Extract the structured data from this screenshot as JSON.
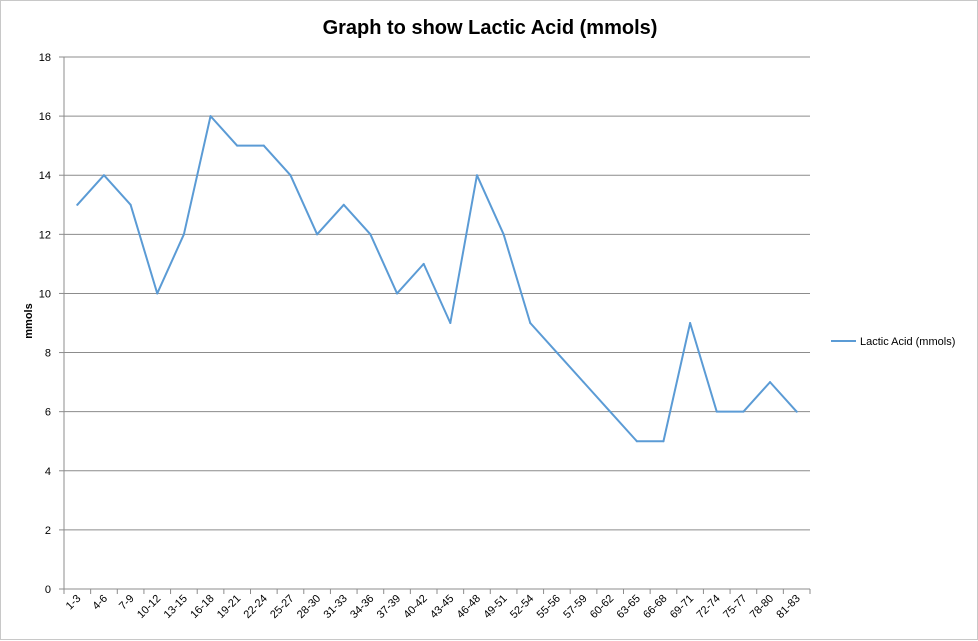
{
  "chart_data": {
    "type": "line",
    "title": "Graph to show Lactic Acid (mmols)",
    "xlabel": "",
    "ylabel": "mmols",
    "ylim": [
      0,
      18
    ],
    "yticks": [
      0,
      2,
      4,
      6,
      8,
      10,
      12,
      14,
      16,
      18
    ],
    "grid": true,
    "legend_position": "right",
    "categories": [
      "1-3",
      "4-6",
      "7-9",
      "10-12",
      "13-15",
      "16-18",
      "19-21",
      "22-24",
      "25-27",
      "28-30",
      "31-33",
      "34-36",
      "37-39",
      "40-42",
      "43-45",
      "46-48",
      "49-51",
      "52-54",
      "55-56",
      "57-59",
      "60-62",
      "63-65",
      "66-68",
      "69-71",
      "72-74",
      "75-77",
      "78-80",
      "81-83"
    ],
    "series": [
      {
        "name": "Lactic Acid (mmols)",
        "color": "#5b9bd5",
        "values": [
          13,
          14,
          13,
          10,
          12,
          16,
          15,
          15,
          14,
          12,
          13,
          12,
          10,
          11,
          9,
          14,
          12,
          9,
          8,
          7,
          6,
          5,
          5,
          9,
          6,
          6,
          7,
          6
        ]
      }
    ]
  }
}
